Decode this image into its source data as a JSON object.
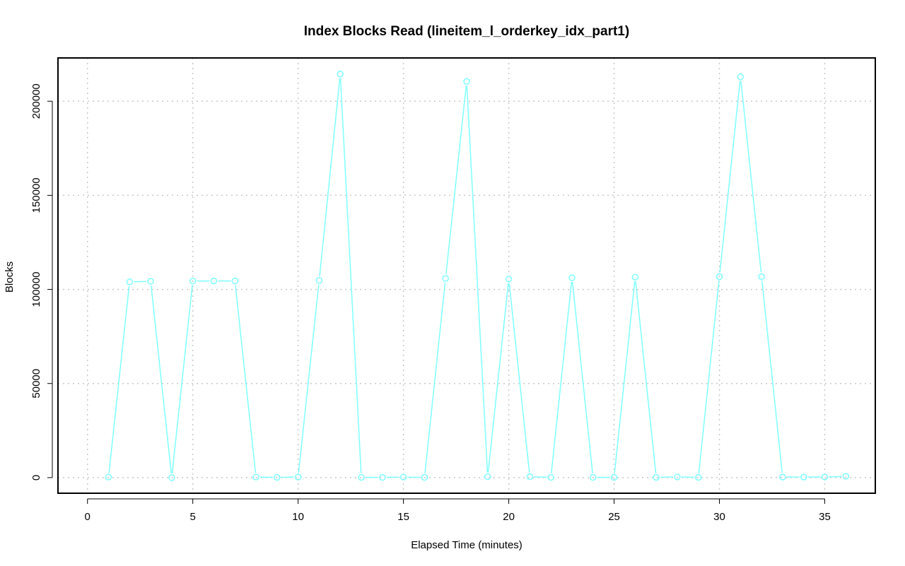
{
  "chart_data": {
    "type": "line",
    "title": "Index Blocks Read (lineitem_l_orderkey_idx_part1)",
    "xlabel": "Elapsed Time (minutes)",
    "ylabel": "Blocks",
    "xlim": [
      -1.4,
      37.4
    ],
    "ylim": [
      -8300,
      223000
    ],
    "x_ticks": [
      0,
      5,
      10,
      15,
      20,
      25,
      30,
      35
    ],
    "y_ticks": [
      0,
      50000,
      100000,
      150000,
      200000
    ],
    "grid": true,
    "line_color": "#7fffff",
    "series": [
      {
        "x": [
          1,
          2,
          3,
          4,
          5,
          6,
          7,
          8,
          9,
          10,
          11,
          12,
          13,
          14,
          15,
          16,
          17,
          18,
          19,
          20,
          21,
          22,
          23,
          24,
          25,
          26,
          27,
          28,
          29,
          30,
          31,
          32,
          33,
          34,
          35,
          36
        ],
        "values": [
          300,
          104000,
          104300,
          0,
          104500,
          104500,
          104500,
          300,
          100,
          300,
          104800,
          214500,
          100,
          100,
          300,
          100,
          105800,
          210500,
          500,
          105500,
          500,
          100,
          106200,
          100,
          100,
          106500,
          100,
          400,
          100,
          106800,
          213000,
          106800,
          300,
          300,
          300,
          700
        ]
      }
    ]
  }
}
